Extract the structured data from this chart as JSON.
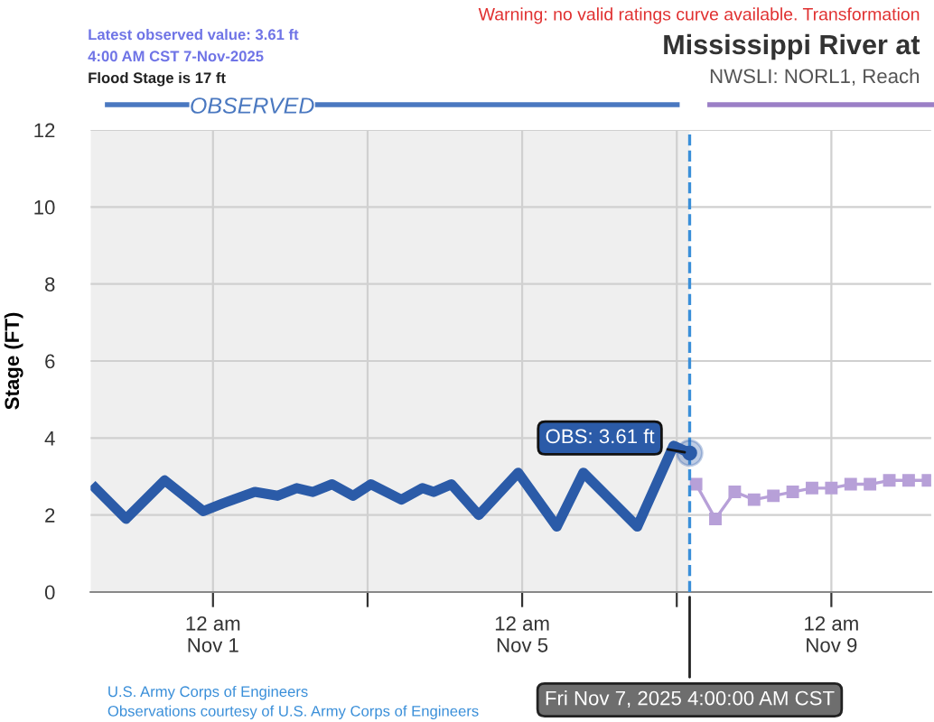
{
  "chart_data": {
    "type": "line",
    "title": "Mississippi River at",
    "subtitle": "NWSLI: NORL1, Reach",
    "ylabel": "Stage (FT)",
    "xlim": [
      "2025-10-30T10:00",
      "2025-11-10T07:00"
    ],
    "ylim": [
      0,
      12
    ],
    "yticks": [
      0,
      2,
      4,
      6,
      8,
      10,
      12
    ],
    "xticks": [
      {
        "value": "2025-11-01T00:00",
        "label": "12 am\nNov 1"
      },
      {
        "value": "2025-11-03T00:00",
        "label": null
      },
      {
        "value": "2025-11-05T00:00",
        "label": "12 am\nNov 5"
      },
      {
        "value": "2025-11-07T00:00",
        "label": null
      },
      {
        "value": "2025-11-09T00:00",
        "label": "12 am\nNov 9"
      }
    ],
    "grid": true,
    "legend": false,
    "series": [
      {
        "color": "#2b5ba8",
        "marker": "none",
        "line_style": "solid",
        "x": [
          "2025-10-30T11:30",
          "2025-10-30T21:00",
          "2025-10-31T09:00",
          "2025-10-31T21:00",
          "2025-11-01T03:00",
          "2025-11-01T13:00",
          "2025-11-01T20:00",
          "2025-11-02T02:00",
          "2025-11-02T07:00",
          "2025-11-02T13:00",
          "2025-11-02T19:30",
          "2025-11-03T01:00",
          "2025-11-03T10:30",
          "2025-11-03T17:00",
          "2025-11-03T20:30",
          "2025-11-04T02:00",
          "2025-11-04T10:30",
          "2025-11-04T22:45",
          "2025-11-05T10:45",
          "2025-11-05T19:00",
          "2025-11-06T11:45",
          "2025-11-06T23:00",
          "2025-11-07T04:00"
        ],
        "values": [
          2.7,
          1.9,
          2.9,
          2.1,
          2.3,
          2.6,
          2.5,
          2.7,
          2.6,
          2.8,
          2.5,
          2.8,
          2.4,
          2.7,
          2.6,
          2.8,
          2.0,
          3.1,
          1.7,
          3.1,
          1.7,
          3.8,
          3.61
        ]
      },
      {
        "color": "#b7a0d8",
        "marker": "square",
        "line_style": "solid",
        "x": [
          "2025-11-07T06:00",
          "2025-11-07T12:00",
          "2025-11-07T18:00",
          "2025-11-08T00:00",
          "2025-11-08T06:00",
          "2025-11-08T12:00",
          "2025-11-08T18:00",
          "2025-11-09T00:00",
          "2025-11-09T06:00",
          "2025-11-09T12:00",
          "2025-11-09T18:00",
          "2025-11-10T00:00",
          "2025-11-10T06:00"
        ],
        "values": [
          2.8,
          1.9,
          2.6,
          2.4,
          2.5,
          2.6,
          2.7,
          2.7,
          2.8,
          2.8,
          2.9,
          2.9,
          2.9
        ]
      }
    ],
    "bands": [
      {
        "axis": "x",
        "from": "2025-10-30T10:00",
        "to": "2025-11-07T04:00",
        "color": "#efefef"
      }
    ],
    "ref_lines": [
      {
        "axis": "x",
        "value": "2025-11-07T04:00",
        "color": "#3a8fd9",
        "line_style": "dashed"
      }
    ],
    "annotations": [
      "Latest observed value: 3.61 ft",
      "4:00 AM CST 7-Nov-2025",
      "Flood Stage is 17 ft",
      "OBSERVED",
      {
        "text": "OBS: 3.61 ft",
        "x": "2025-11-07T04:00",
        "y": 3.61
      },
      {
        "text": "Fri Nov 7, 2025 4:00:00 AM CST",
        "x": "2025-11-07T04:00"
      },
      "U.S. Army Corps of Engineers",
      "Observations courtesy of U.S. Army Corps of Engineers",
      "Warning: no valid ratings curve available. Transformation"
    ]
  }
}
